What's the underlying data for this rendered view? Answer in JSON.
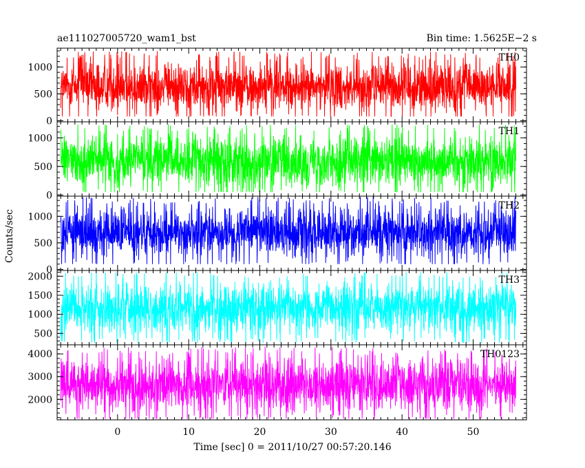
{
  "chart_data": {
    "type": "line",
    "title_left": "ae111027005720_wam1_bst",
    "title_right": "Bin time: 1.5625E−2 s",
    "xlabel": "Time [sec] 0 = 2011/10/27 00:57:20.146",
    "ylabel": "Counts/sec",
    "xlim": [
      -8.5,
      57.5
    ],
    "data_xlim": [
      -8,
      56
    ],
    "bin_time": 0.015625,
    "x_ticks": [
      "0",
      "10",
      "20",
      "30",
      "40",
      "50"
    ],
    "x_tick_values": [
      0,
      10,
      20,
      30,
      40,
      50
    ],
    "x_minor_step": 1,
    "grid": false,
    "panels": [
      {
        "name": "TH0",
        "color": "#ff0000",
        "ylim": [
          -20,
          1350
        ],
        "y_ticks": [
          0,
          500,
          1000
        ],
        "y_minor_step": 100,
        "mean": 640,
        "min": 80,
        "max": 1330
      },
      {
        "name": "TH1",
        "color": "#00ff00",
        "ylim": [
          -20,
          1280
        ],
        "y_ticks": [
          0,
          500,
          1000
        ],
        "y_minor_step": 100,
        "mean": 600,
        "min": 50,
        "max": 1280
      },
      {
        "name": "TH2",
        "color": "#0000ff",
        "ylim": [
          -20,
          1380
        ],
        "y_ticks": [
          0,
          500,
          1000
        ],
        "y_minor_step": 100,
        "mean": 700,
        "min": 100,
        "max": 1380
      },
      {
        "name": "TH3",
        "color": "#00ffff",
        "ylim": [
          200,
          2150
        ],
        "y_ticks": [
          500,
          1000,
          1500,
          2000
        ],
        "y_minor_step": 100,
        "mean": 1170,
        "min": 250,
        "max": 2100
      },
      {
        "name": "TH0123",
        "color": "#ff00ff",
        "ylim": [
          1100,
          4400
        ],
        "y_ticks": [
          2000,
          3000,
          4000
        ],
        "y_minor_step": 200,
        "mean": 2650,
        "min": 1150,
        "max": 4350
      }
    ]
  }
}
